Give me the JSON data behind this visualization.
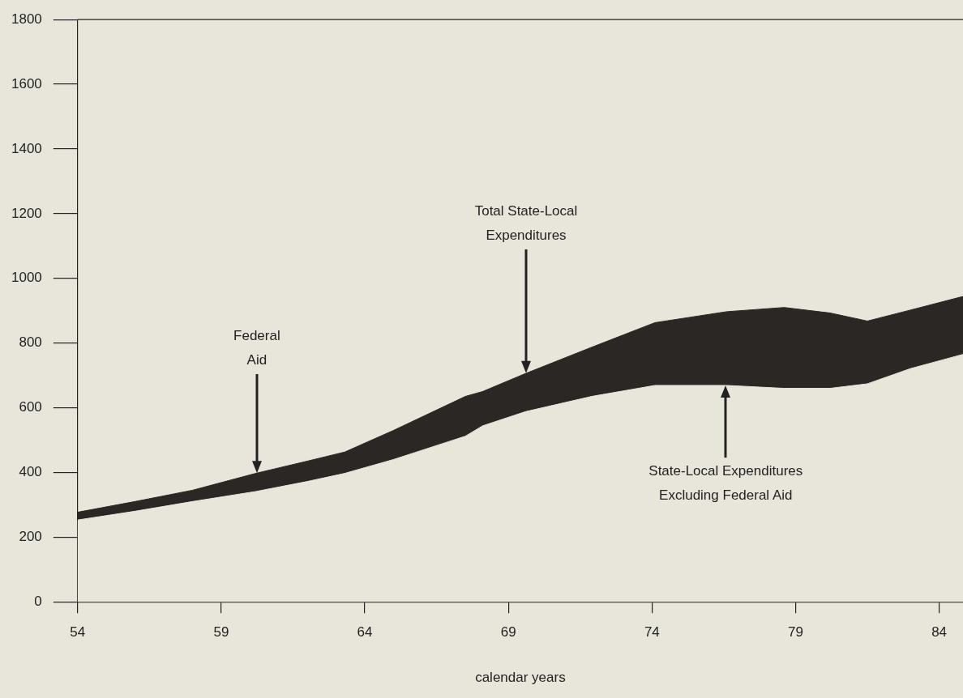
{
  "chart_data": {
    "type": "area",
    "xlabel": "calendar years",
    "x": [
      54,
      56,
      58,
      60.2,
      62,
      63.3,
      65,
      67.5,
      68.1,
      69.6,
      71.9,
      74.1,
      76.6,
      78.6,
      80.2,
      81.5,
      83.0,
      84.83
    ],
    "series": [
      {
        "color": "#2b2724",
        "values": [
          277,
          310,
          345,
          397,
          435,
          463,
          530,
          635,
          650,
          706,
          787,
          863,
          897,
          910,
          893,
          868,
          902,
          944
        ]
      },
      {
        "color": "#e8e6da",
        "values": [
          253,
          280,
          310,
          341,
          372,
          397,
          440,
          512,
          544,
          588,
          635,
          669,
          669,
          660,
          660,
          674,
          721,
          765
        ]
      }
    ],
    "xlim": [
      54,
      84.83
    ],
    "xticks": [
      54,
      59,
      64,
      69,
      74,
      79,
      84
    ],
    "ylim": [
      0,
      1800
    ],
    "yticks": [
      0,
      200,
      400,
      600,
      800,
      1000,
      1200,
      1400,
      1600,
      1800
    ],
    "grid": false,
    "legend": false,
    "marker": "none",
    "line_style": "solid",
    "annotations": [
      "Federal\nAid",
      "Total State-Local\nExpenditures",
      "State-Local Expenditures\nExcluding Federal Aid"
    ]
  }
}
